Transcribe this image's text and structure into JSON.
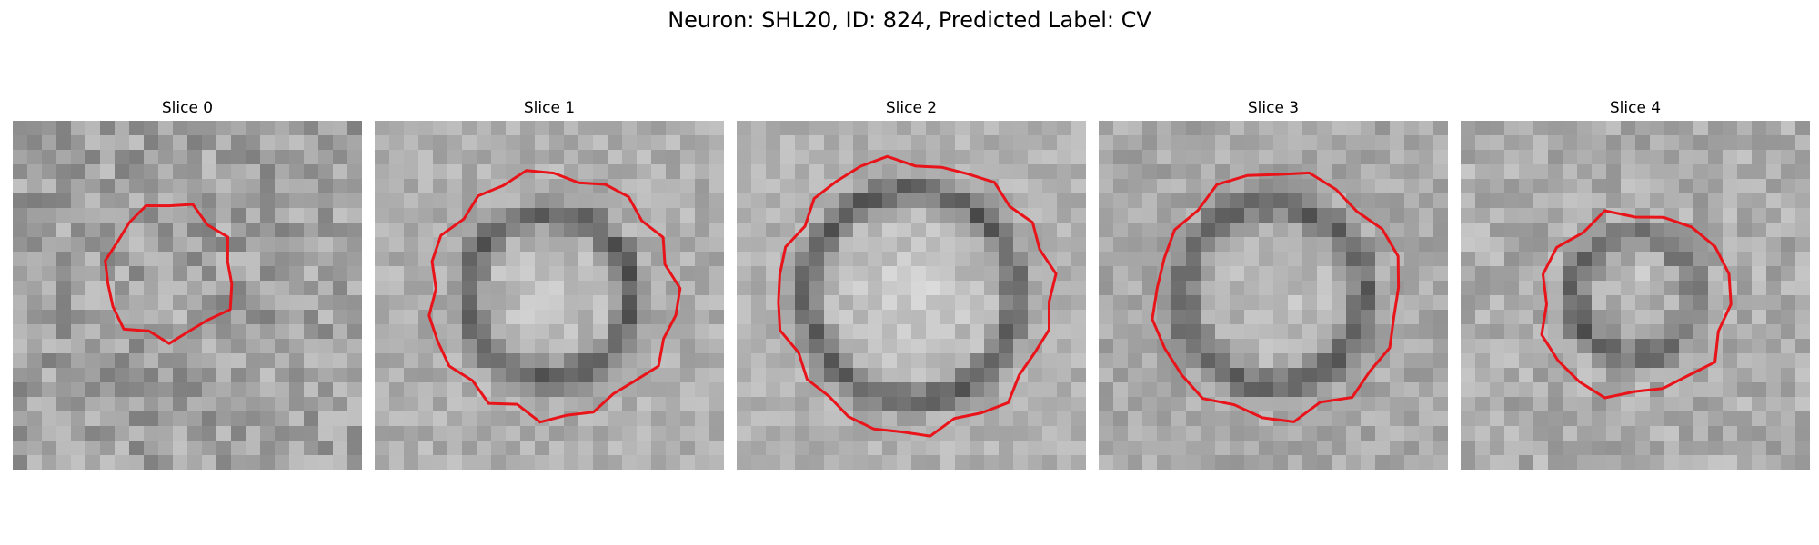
{
  "figure": {
    "title": "Neuron: SHL20, ID: 824, Predicted Label: CV",
    "contour_color": "#e8141a",
    "panels": [
      {
        "title": "Slice 0",
        "tone": {
          "base": 160,
          "contrast": 70,
          "center": 0.45,
          "ring": 0.0,
          "ringRadius": 0.2,
          "roughness": 1.0,
          "seed": 11
        },
        "contour": [
          [
            8.3,
            0.31
          ],
          [
            9.7,
            0.29
          ],
          [
            11.0,
            0.3
          ],
          [
            11.6,
            0.34
          ],
          [
            12.0,
            0.4
          ],
          [
            12.3,
            0.36
          ],
          [
            12.8,
            0.3
          ],
          [
            13.0,
            0.23
          ],
          [
            13.0,
            0.15
          ],
          [
            12.6,
            0.05
          ],
          [
            12.0,
            -0.02
          ],
          [
            10.8,
            -0.06
          ],
          [
            9.4,
            -0.08
          ],
          [
            8.2,
            -0.05
          ],
          [
            7.4,
            0.02
          ],
          [
            7.0,
            0.12
          ],
          [
            7.2,
            0.23
          ],
          [
            7.6,
            0.29
          ]
        ]
      },
      {
        "title": "Slice 1",
        "tone": {
          "base": 175,
          "contrast": 55,
          "center": 0.88,
          "ring": 0.9,
          "ringRadius": 0.47,
          "roughness": 0.8,
          "seed": 23
        },
        "contour": [
          [
            13.5,
            -0.02
          ],
          [
            15.0,
            -0.04
          ],
          [
            16.5,
            -0.05
          ],
          [
            17.6,
            -0.07
          ],
          [
            18.0,
            -0.12
          ],
          [
            18.6,
            -0.2
          ],
          [
            19.0,
            -0.29
          ],
          [
            18.8,
            -0.38
          ],
          [
            18.6,
            -0.46
          ],
          [
            19.2,
            -0.55
          ],
          [
            19.8,
            -0.64
          ],
          [
            20.2,
            -0.74
          ],
          [
            20.0,
            -0.83
          ],
          [
            19.6,
            -0.91
          ],
          [
            19.4,
            -0.99
          ],
          [
            18.9,
            -1.06
          ],
          [
            18.0,
            -1.1
          ],
          [
            16.8,
            -1.14
          ],
          [
            15.2,
            -1.12
          ],
          [
            13.8,
            -1.09
          ],
          [
            12.7,
            -1.03
          ],
          [
            11.8,
            -0.94
          ],
          [
            11.2,
            -0.84
          ],
          [
            10.8,
            -0.72
          ],
          [
            10.9,
            -0.6
          ],
          [
            11.2,
            -0.47
          ],
          [
            11.7,
            -0.34
          ],
          [
            12.4,
            -0.2
          ],
          [
            12.9,
            -0.1
          ]
        ]
      },
      {
        "title": "Slice 2",
        "tone": {
          "base": 178,
          "contrast": 55,
          "center": 0.95,
          "ring": 1.0,
          "ringRadius": 0.6,
          "roughness": 0.7,
          "seed": 37
        },
        "contour": [
          [
            3.0,
            -0.11
          ],
          [
            4.1,
            -0.13
          ],
          [
            5.2,
            -0.13
          ],
          [
            6.6,
            -0.12
          ],
          [
            8.0,
            -0.1
          ],
          [
            9.6,
            -0.07
          ],
          [
            11.2,
            -0.02
          ],
          [
            12.9,
            0.06
          ],
          [
            14.3,
            0.16
          ],
          [
            15.6,
            0.3
          ],
          [
            16.2,
            0.44
          ],
          [
            16.1,
            0.56
          ],
          [
            15.9,
            0.67
          ],
          [
            15.4,
            0.78
          ],
          [
            15.0,
            0.87
          ],
          [
            14.9,
            0.96
          ],
          [
            14.6,
            1.02
          ],
          [
            13.8,
            1.06
          ],
          [
            12.7,
            1.09
          ],
          [
            11.3,
            1.1
          ],
          [
            9.6,
            1.08
          ],
          [
            8.1,
            1.03
          ],
          [
            6.8,
            0.96
          ],
          [
            5.6,
            0.88
          ],
          [
            4.6,
            0.79
          ],
          [
            3.7,
            0.68
          ],
          [
            3.1,
            0.54
          ],
          [
            2.8,
            0.4
          ],
          [
            2.7,
            0.26
          ],
          [
            2.8,
            0.12
          ],
          [
            2.9,
            0.01
          ]
        ]
      },
      {
        "title": "Slice 3",
        "tone": {
          "base": 168,
          "contrast": 55,
          "center": 0.9,
          "ring": 0.85,
          "ringRadius": 0.52,
          "roughness": 0.8,
          "seed": 41
        },
        "contour": [
          [
            5.4,
            0.02
          ],
          [
            6.8,
            0.02
          ],
          [
            8.4,
            0.03
          ],
          [
            10.0,
            0.06
          ],
          [
            11.6,
            0.12
          ],
          [
            12.8,
            0.22
          ],
          [
            13.4,
            0.34
          ],
          [
            13.2,
            0.45
          ],
          [
            12.6,
            0.55
          ],
          [
            12.3,
            0.65
          ],
          [
            11.8,
            0.75
          ],
          [
            11.0,
            0.84
          ],
          [
            9.9,
            0.92
          ],
          [
            8.6,
            0.97
          ],
          [
            7.2,
            0.99
          ],
          [
            5.9,
            0.97
          ],
          [
            4.7,
            0.91
          ],
          [
            3.7,
            0.82
          ],
          [
            2.9,
            0.71
          ],
          [
            2.4,
            0.59
          ],
          [
            2.3,
            0.46
          ],
          [
            2.5,
            0.34
          ],
          [
            3.1,
            0.22
          ],
          [
            3.8,
            0.12
          ],
          [
            4.6,
            0.05
          ]
        ]
      },
      {
        "title": "Slice 4",
        "tone": {
          "base": 172,
          "contrast": 60,
          "center": 0.55,
          "ring": 0.8,
          "ringRadius": 0.35,
          "roughness": 0.9,
          "seed": 53
        },
        "contour": [
          [
            9.0,
            0.25
          ],
          [
            10.3,
            0.22
          ],
          [
            11.6,
            0.22
          ],
          [
            12.8,
            0.26
          ],
          [
            13.8,
            0.33
          ],
          [
            14.6,
            0.42
          ],
          [
            15.0,
            0.52
          ],
          [
            14.8,
            0.62
          ],
          [
            14.1,
            0.7
          ],
          [
            13.1,
            0.76
          ],
          [
            12.0,
            0.82
          ],
          [
            10.8,
            0.88
          ],
          [
            9.6,
            0.93
          ],
          [
            8.6,
            0.87
          ],
          [
            7.8,
            0.79
          ],
          [
            7.1,
            0.71
          ],
          [
            6.7,
            0.61
          ],
          [
            6.7,
            0.5
          ],
          [
            7.1,
            0.41
          ],
          [
            7.8,
            0.33
          ]
        ]
      }
    ]
  }
}
